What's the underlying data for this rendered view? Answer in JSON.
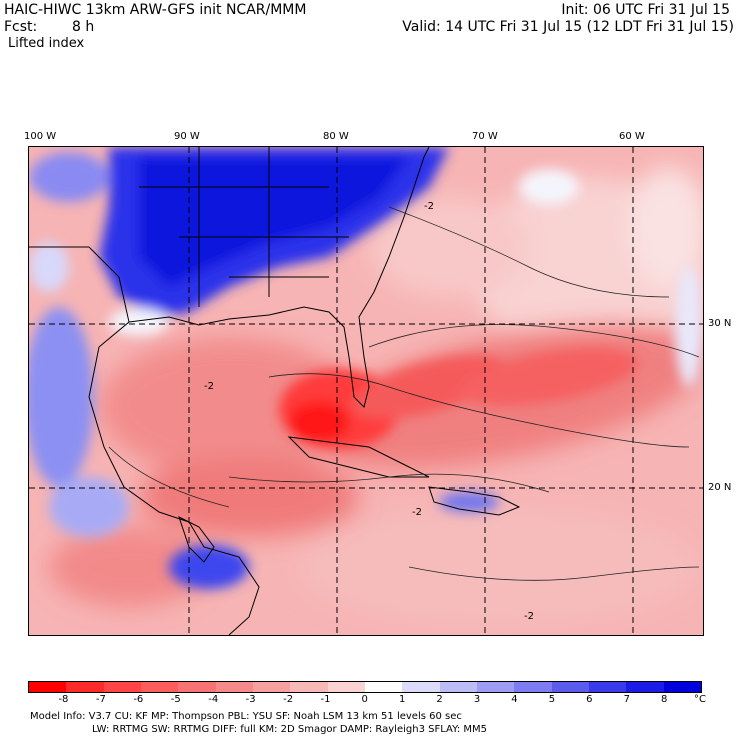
{
  "header": {
    "title": "HAIC-HIWC 13km ARW-GFS init  NCAR/MMM",
    "fcst_label": "Fcst:",
    "fcst_value": "8 h",
    "field": "Lifted index",
    "init": "Init: 06 UTC Fri 31 Jul 15",
    "valid": "Valid: 14 UTC Fri 31 Jul 15 (12 LDT Fri 31 Jul 15)"
  },
  "map": {
    "lon_labels": [
      "100 W",
      "90 W",
      "80 W",
      "70 W",
      "60 W"
    ],
    "lat_labels": [
      "30 N",
      "20 N"
    ],
    "contour_label": "-2",
    "colors": {
      "land_boundary": "#000000",
      "strong_negative": "#ff1a1a",
      "negative": "#f48a8a",
      "weak_negative": "#f8c4c4",
      "positive": "#3b46f0",
      "strong_positive": "#0c14e0"
    }
  },
  "colorbar": {
    "labels": [
      "-8",
      "-7",
      "-6",
      "-5",
      "-4",
      "-3",
      "-2",
      "-1",
      "0",
      "1",
      "2",
      "3",
      "4",
      "5",
      "6",
      "7",
      "8"
    ],
    "unit": "°C",
    "colors": [
      "#ff0000",
      "#ff2a2a",
      "#ff4545",
      "#fc5d5d",
      "#f87474",
      "#f68a8a",
      "#f6a0a0",
      "#f8b8b8",
      "#fbd2d2",
      "#fdfdfd",
      "#dcdcfa",
      "#bcbcf7",
      "#9d9df4",
      "#7d7df1",
      "#5b5bee",
      "#3a3aeb",
      "#1c1ce6",
      "#0000dd"
    ]
  },
  "footer": {
    "line1": "Model Info: V3.7      CU: KF       MP: Thompson      PBL: YSU       SF: Noah LSM      13 km     51 levels    60 sec",
    "line2": "LW: RRTMG     SW: RRTMG    DIFF: full    KM: 2D Smagor DAMP: Rayleigh3   SFLAY: MM5"
  }
}
